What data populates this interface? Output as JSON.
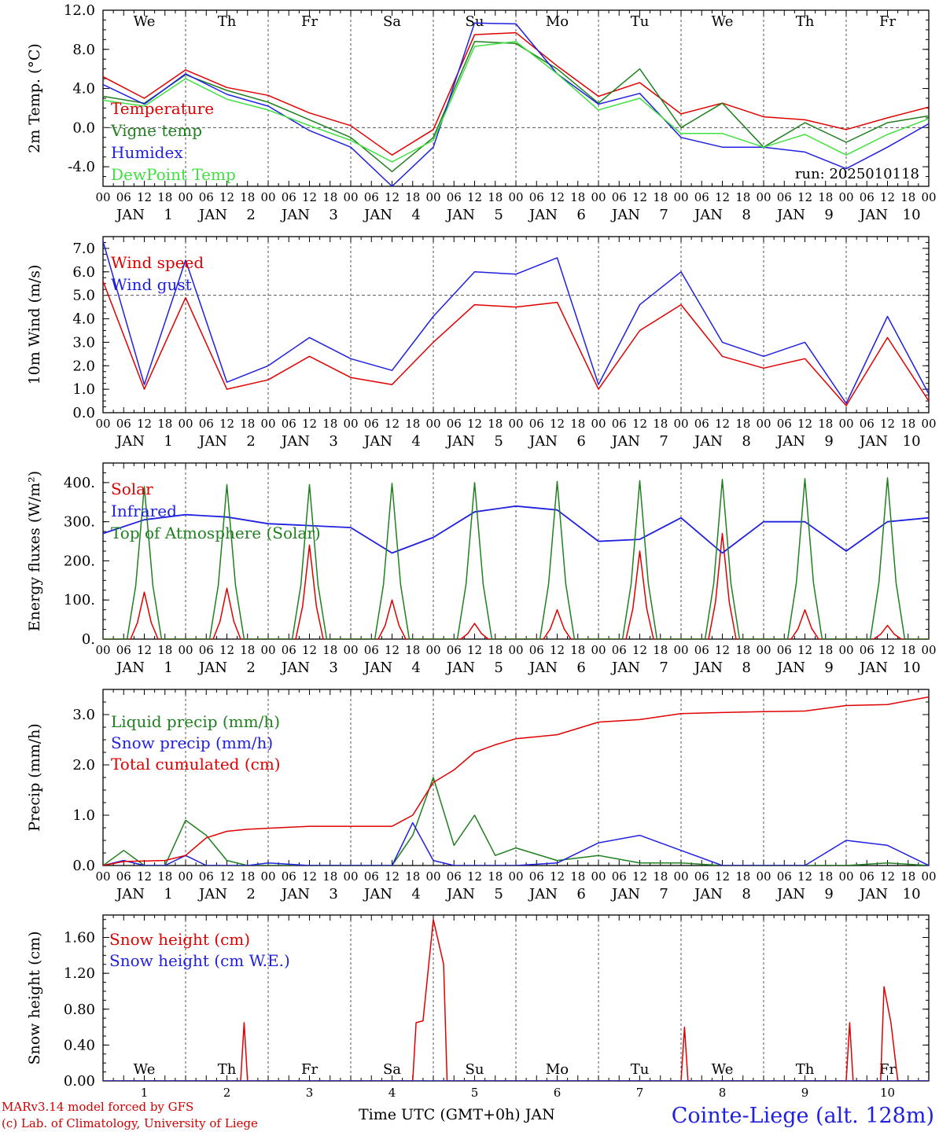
{
  "chart_data": [
    {
      "type": "line",
      "ylabel": "2m Temp. (°C)",
      "ylim": [
        -6,
        12
      ],
      "yticks": [
        "-4.0",
        "0.0",
        "4.0",
        "8.0",
        "12.0"
      ],
      "ytick_values": [
        -4,
        0,
        4,
        8,
        12
      ],
      "ref_line": 0,
      "day_labels": [
        "We",
        "Th",
        "Fr",
        "Sa",
        "Su",
        "Mo",
        "Tu",
        "We",
        "Th",
        "Fr"
      ],
      "weekend_color": "#e00000",
      "annotation": "run: 2025010118",
      "x_hours": [
        0,
        12,
        24,
        36,
        48,
        60,
        72,
        84,
        96,
        108,
        120,
        132,
        144,
        156,
        168,
        180,
        192,
        204,
        216,
        228,
        240
      ],
      "series": [
        {
          "name": "Temperature",
          "color": "#e00000",
          "values": [
            5.2,
            3.0,
            5.9,
            4.1,
            3.3,
            1.5,
            0.2,
            -2.8,
            -0.2,
            9.5,
            9.7,
            6.3,
            3.2,
            4.6,
            1.4,
            2.5,
            1.1,
            0.8,
            -0.2,
            1.0,
            2.1
          ]
        },
        {
          "name": "Vigne temp",
          "color": "#208020",
          "values": [
            3.2,
            2.5,
            5.4,
            3.8,
            2.6,
            0.8,
            -1.0,
            -4.5,
            -1.0,
            8.8,
            8.6,
            6.0,
            2.5,
            6.0,
            0.0,
            2.5,
            -2.0,
            0.5,
            -1.5,
            0.5,
            1.2
          ]
        },
        {
          "name": "Humidex",
          "color": "#2020e0",
          "values": [
            4.4,
            2.4,
            5.5,
            3.4,
            2.2,
            -0.3,
            -2.0,
            -6.0,
            -2.0,
            10.7,
            10.6,
            5.5,
            2.4,
            3.5,
            -1.0,
            -2.0,
            -2.0,
            -2.5,
            -4.2,
            -2.0,
            0.4
          ]
        },
        {
          "name": "DewPoint Temp",
          "color": "#40e040",
          "values": [
            2.8,
            2.2,
            5.0,
            2.9,
            1.8,
            0.2,
            -1.3,
            -3.5,
            -1.3,
            8.3,
            8.8,
            5.5,
            1.8,
            3.0,
            -0.6,
            -0.6,
            -2.0,
            -0.7,
            -2.8,
            -0.7,
            0.9
          ]
        }
      ]
    },
    {
      "type": "line",
      "ylabel": "10m Wind (m/s)",
      "ylim": [
        0,
        7.5
      ],
      "yticks": [
        "0.0",
        "1.0",
        "2.0",
        "3.0",
        "4.0",
        "5.0",
        "6.0",
        "7.0"
      ],
      "ytick_values": [
        0,
        1,
        2,
        3,
        4,
        5,
        6,
        7
      ],
      "ref_line": 5,
      "x_hours": [
        0,
        12,
        24,
        36,
        48,
        60,
        72,
        84,
        96,
        108,
        120,
        132,
        144,
        156,
        168,
        180,
        192,
        204,
        216,
        228,
        240
      ],
      "series": [
        {
          "name": "Wind speed",
          "color": "#e00000",
          "values": [
            5.6,
            1.0,
            4.9,
            1.0,
            1.4,
            2.4,
            1.5,
            1.2,
            3.0,
            4.6,
            4.5,
            4.7,
            1.0,
            3.5,
            4.6,
            2.4,
            1.9,
            2.3,
            0.3,
            3.2,
            0.5
          ]
        },
        {
          "name": "Wind gust",
          "color": "#2020e0",
          "values": [
            7.3,
            1.2,
            6.5,
            1.3,
            2.0,
            3.2,
            2.3,
            1.8,
            4.1,
            6.0,
            5.9,
            6.6,
            1.2,
            4.6,
            6.0,
            3.0,
            2.4,
            3.0,
            0.4,
            4.1,
            0.8
          ]
        }
      ]
    },
    {
      "type": "line",
      "ylabel": "Energy fluxes (W/m²)",
      "ylim": [
        0,
        450
      ],
      "yticks": [
        "0.",
        "100.",
        "200.",
        "300.",
        "400."
      ],
      "ytick_values": [
        0,
        100,
        200,
        300,
        400
      ],
      "solar_peaks": [
        120,
        130,
        240,
        100,
        40,
        75,
        225,
        270,
        75,
        35
      ],
      "toa_peaks": [
        390,
        395,
        395,
        398,
        400,
        403,
        405,
        408,
        410,
        412
      ],
      "x_hours": [
        0,
        12,
        24,
        36,
        48,
        60,
        72,
        84,
        96,
        108,
        120,
        132,
        144,
        156,
        168,
        180,
        192,
        204,
        216,
        228,
        240
      ],
      "series": [
        {
          "name": "Solar",
          "color": "#e00000",
          "values": []
        },
        {
          "name": "Infrared",
          "color": "#2020e0",
          "values": [
            270,
            305,
            318,
            312,
            295,
            290,
            285,
            220,
            260,
            325,
            340,
            330,
            250,
            255,
            310,
            220,
            300,
            300,
            225,
            300,
            310
          ]
        },
        {
          "name": "Top of Atmosphere (Solar)",
          "color": "#208020",
          "values": []
        }
      ]
    },
    {
      "type": "line",
      "ylabel": "Precip (mm/h)",
      "ylim": [
        0,
        3.5
      ],
      "yticks": [
        "0.0",
        "1.0",
        "2.0",
        "3.0"
      ],
      "ytick_values": [
        0,
        1,
        2,
        3
      ],
      "x_hours": [
        0,
        6,
        12,
        18,
        24,
        30,
        36,
        42,
        48,
        60,
        72,
        84,
        90,
        96,
        102,
        108,
        114,
        120,
        132,
        144,
        156,
        168,
        180,
        192,
        204,
        216,
        228,
        240
      ],
      "series": [
        {
          "name": "Liquid precip (mm/h)",
          "color": "#208020",
          "values": [
            0.0,
            0.3,
            0.0,
            0.0,
            0.9,
            0.6,
            0.1,
            0.0,
            0.0,
            0.0,
            0.0,
            0.0,
            0.6,
            1.75,
            0.4,
            1.0,
            0.2,
            0.35,
            0.1,
            0.2,
            0.05,
            0.05,
            0.0,
            0.0,
            0.0,
            0.0,
            0.05,
            0.0
          ]
        },
        {
          "name": "Snow precip (mm/h)",
          "color": "#2020e0",
          "values": [
            0.0,
            0.1,
            0.0,
            0.0,
            0.2,
            0.0,
            0.0,
            0.0,
            0.05,
            0.0,
            0.0,
            0.0,
            0.85,
            0.1,
            0.0,
            0.0,
            0.0,
            0.0,
            0.05,
            0.45,
            0.6,
            0.3,
            0.0,
            0.0,
            0.0,
            0.5,
            0.4,
            0.0
          ]
        },
        {
          "name": "Total cumulated (cm)",
          "color": "#e00000",
          "values": [
            0.0,
            0.08,
            0.09,
            0.1,
            0.2,
            0.55,
            0.68,
            0.72,
            0.74,
            0.78,
            0.78,
            0.78,
            1.0,
            1.65,
            1.9,
            2.25,
            2.4,
            2.52,
            2.6,
            2.85,
            2.9,
            3.02,
            3.04,
            3.06,
            3.07,
            3.18,
            3.2,
            3.35
          ]
        }
      ]
    },
    {
      "type": "line",
      "ylabel": "Snow height (cm)",
      "ylim": [
        0,
        1.85
      ],
      "yticks": [
        "0.00",
        "0.40",
        "0.80",
        "1.20",
        "1.60"
      ],
      "ytick_values": [
        0,
        0.4,
        0.8,
        1.2,
        1.6
      ],
      "day_labels": [
        "We",
        "Th",
        "Fr",
        "Sa",
        "Su",
        "Mo",
        "Tu",
        "We",
        "Th",
        "Fr"
      ],
      "day_numbers": [
        "1",
        "2",
        "3",
        "4",
        "5",
        "6",
        "7",
        "8",
        "9",
        "10"
      ],
      "xlabel": "Time UTC (GMT+0h) JAN",
      "x_hours": [
        0,
        40,
        41,
        42,
        90,
        91,
        93,
        96,
        99,
        100,
        168,
        169,
        170,
        216,
        217,
        218,
        226,
        227,
        229,
        231,
        240
      ],
      "series": [
        {
          "name": "Snow height (cm)",
          "color": "#e00000",
          "values": [
            0,
            0,
            0.65,
            0,
            0,
            0.65,
            0.67,
            1.8,
            1.3,
            0,
            0,
            0.6,
            0,
            0,
            0.65,
            0,
            0,
            1.05,
            0.65,
            0,
            0
          ]
        },
        {
          "name": "Snow height (cm W.E.)",
          "color": "#2020e0",
          "values": []
        }
      ]
    }
  ],
  "axis": {
    "hour_ticks": [
      "00",
      "06",
      "12",
      "18"
    ],
    "month": "JAN",
    "days": [
      "1",
      "2",
      "3",
      "4",
      "5",
      "6",
      "7",
      "8",
      "9",
      "10"
    ]
  },
  "footer": {
    "model": "MARv3.14 model forced by GFS",
    "credit": "(c) Lab. of Climatology, University of Liege",
    "station": "Cointe-Liege (alt. 128m)"
  }
}
